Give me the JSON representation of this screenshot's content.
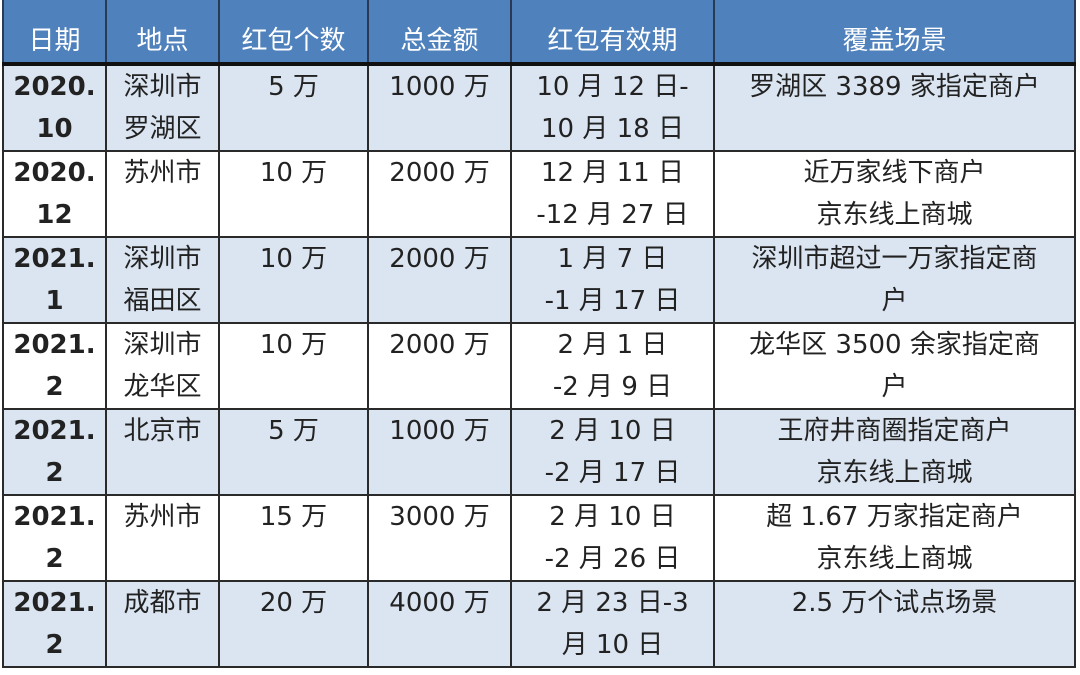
{
  "headers": [
    "日期",
    "地点",
    "红包个数",
    "总金额",
    "红包有效期",
    "覆盖场景"
  ],
  "rows": [
    {
      "date": "2020.\n10",
      "place": "深圳市\n罗湖区",
      "count": "5 万",
      "total": "1000 万",
      "period": "10 月 12 日-\n10 月 18 日",
      "scene": "罗湖区 3389 家指定商户"
    },
    {
      "date": "2020.\n12",
      "place": "苏州市",
      "count": "10 万",
      "total": "2000 万",
      "period": "12 月 11 日\n-12 月 27 日",
      "scene": "近万家线下商户\n京东线上商城"
    },
    {
      "date": "2021.\n1",
      "place": "深圳市\n福田区",
      "count": "10 万",
      "total": "2000 万",
      "period": "1 月 7 日\n-1 月 17 日",
      "scene": "深圳市超过一万家指定商\n户"
    },
    {
      "date": "2021.\n2",
      "place": "深圳市\n龙华区",
      "count": "10 万",
      "total": "2000 万",
      "period": "2 月 1 日\n-2 月 9 日",
      "scene": "龙华区 3500 余家指定商\n户"
    },
    {
      "date": "2021.\n2",
      "place": "北京市",
      "count": "5 万",
      "total": "1000 万",
      "period": "2 月 10 日\n-2 月 17 日",
      "scene": "王府井商圈指定商户\n京东线上商城"
    },
    {
      "date": "2021.\n2",
      "place": "苏州市",
      "count": "15 万",
      "total": "3000 万",
      "period": "2 月 10 日\n-2 月 26 日",
      "scene": "超 1.67 万家指定商户\n京东线上商城"
    },
    {
      "date": "2021.\n2",
      "place": "成都市",
      "count": "20 万",
      "total": "4000 万",
      "period": "2 月 23 日-3\n月 10 日",
      "scene": "2.5 万个试点场景"
    }
  ]
}
